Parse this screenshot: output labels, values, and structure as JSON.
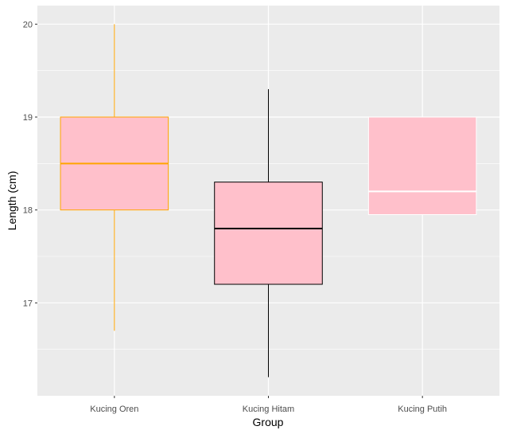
{
  "chart_data": {
    "type": "boxplot",
    "title": "",
    "xlabel": "Group",
    "ylabel": "Length (cm)",
    "categories": [
      "Kucing Oren",
      "Kucing Hitam",
      "Kucing Putih"
    ],
    "ylim": [
      16.0,
      20.2
    ],
    "yticks": [
      17,
      18,
      19,
      20
    ],
    "yticks_labels": [
      "17",
      "18",
      "19",
      "20"
    ],
    "grid": true,
    "legend": "none",
    "panel_color": "#ebebeb",
    "box_fill": "#ffc0cb",
    "series": [
      {
        "category": "Kucing Oren",
        "min": 16.7,
        "q1": 18.0,
        "median": 18.5,
        "q3": 19.0,
        "max": 20.0,
        "color": "#ffa500"
      },
      {
        "category": "Kucing Hitam",
        "min": 16.2,
        "q1": 17.2,
        "median": 17.8,
        "q3": 18.3,
        "max": 19.3,
        "color": "#000000"
      },
      {
        "category": "Kucing Putih",
        "min": 17.95,
        "q1": 17.95,
        "median": 18.2,
        "q3": 19.0,
        "max": 19.0,
        "color": "#ffffff"
      }
    ]
  }
}
